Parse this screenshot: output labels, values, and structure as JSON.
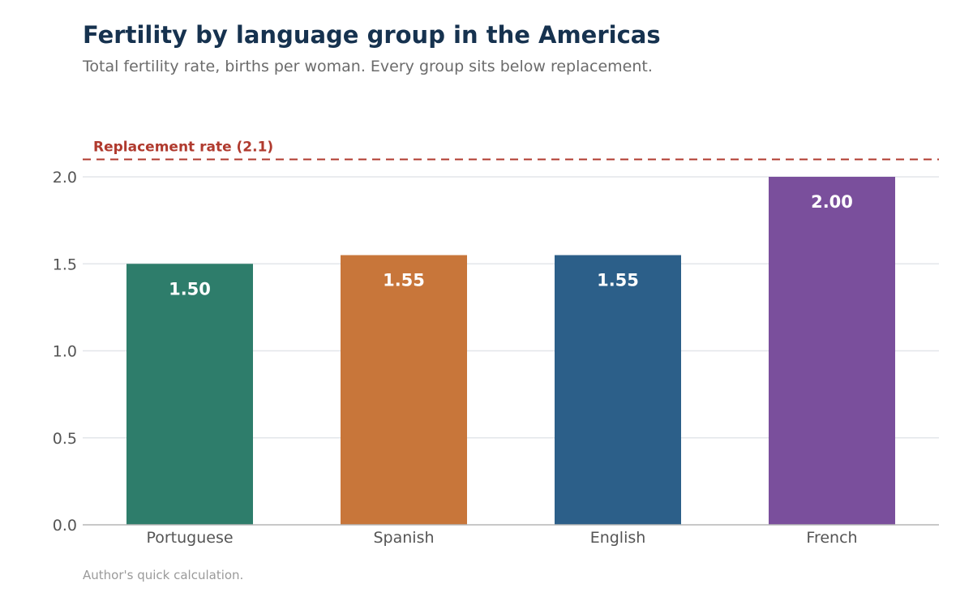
{
  "header": {
    "title": "Fertility by language group in the Americas",
    "subtitle": "Total fertility rate, births per woman. Every group sits below replacement."
  },
  "footer": {
    "source": "Author's quick calculation."
  },
  "chart_data": {
    "type": "bar",
    "categories": [
      "Portuguese",
      "Spanish",
      "English",
      "French"
    ],
    "values": [
      1.5,
      1.55,
      1.55,
      2.0
    ],
    "value_labels": [
      "1.50",
      "1.55",
      "1.55",
      "2.00"
    ],
    "colors": [
      "#2e7d6b",
      "#c8763a",
      "#2c5f89",
      "#7a4f9c"
    ],
    "ylim": [
      0,
      2.2
    ],
    "yticks": [
      0,
      0.5,
      1.0,
      1.5,
      2.0
    ],
    "ytick_labels": [
      "0.0",
      "0.5",
      "1.0",
      "1.5",
      "2.0"
    ],
    "grid": true,
    "reference_line": {
      "value": 2.1,
      "label": "Replacement rate (2.1)",
      "color": "#b03a2e"
    },
    "xlabel": "",
    "ylabel": ""
  }
}
